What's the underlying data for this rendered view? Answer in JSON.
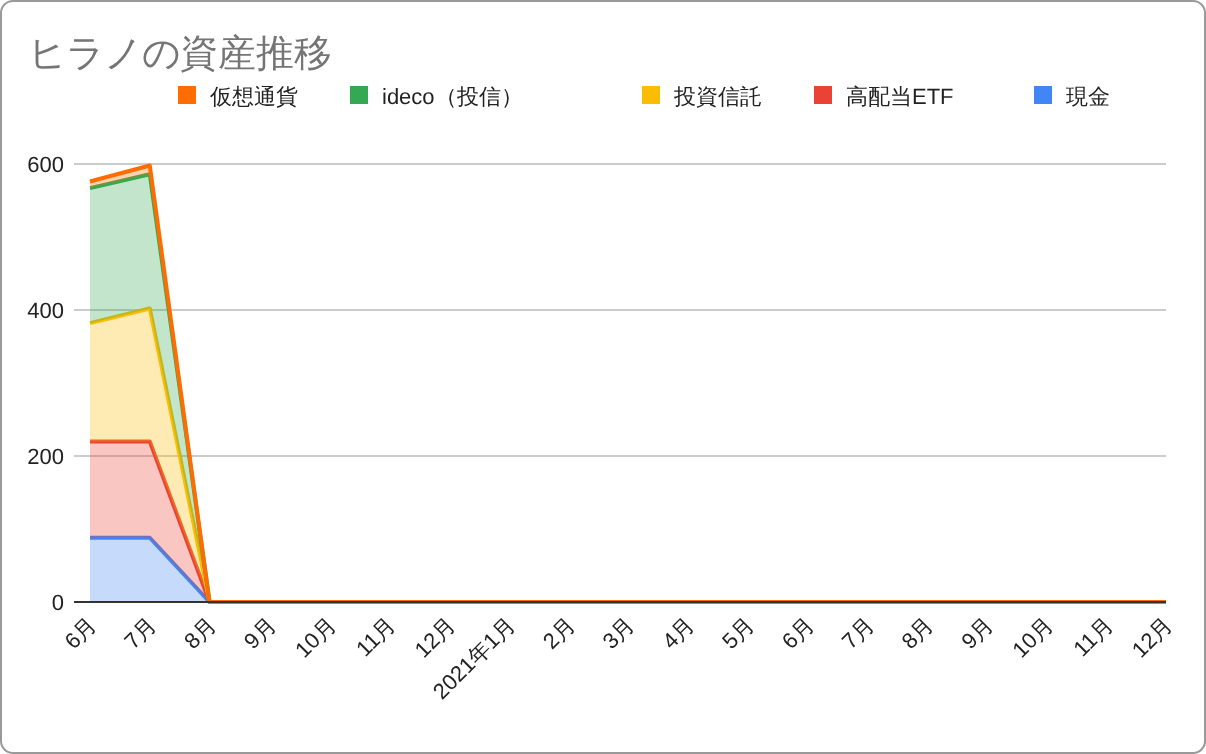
{
  "chart_data": {
    "type": "area",
    "title": "ヒラノの資産推移",
    "stacked": true,
    "legend": "top",
    "grid": "y",
    "categories": [
      "6月",
      "7月",
      "8月",
      "9月",
      "10月",
      "11月",
      "12月",
      "2021年1月",
      "2月",
      "3月",
      "4月",
      "5月",
      "6月",
      "7月",
      "8月",
      "9月",
      "10月",
      "11月",
      "12月"
    ],
    "ylim": [
      0,
      600
    ],
    "yticks": [
      0,
      200,
      400,
      600
    ],
    "series": [
      {
        "name": "現金",
        "color": "#4285f4",
        "values": [
          88,
          88,
          0,
          0,
          0,
          0,
          0,
          0,
          0,
          0,
          0,
          0,
          0,
          0,
          0,
          0,
          0,
          0,
          0
        ]
      },
      {
        "name": "高配当ETF",
        "color": "#ea4335",
        "values": [
          132,
          132,
          0,
          0,
          0,
          0,
          0,
          0,
          0,
          0,
          0,
          0,
          0,
          0,
          0,
          0,
          0,
          0,
          0
        ]
      },
      {
        "name": "投資信託",
        "color": "#fbbc04",
        "values": [
          162,
          182,
          0,
          0,
          0,
          0,
          0,
          0,
          0,
          0,
          0,
          0,
          0,
          0,
          0,
          0,
          0,
          0,
          0
        ]
      },
      {
        "name": "ideco（投信）",
        "color": "#34a853",
        "values": [
          185,
          184,
          0,
          0,
          0,
          0,
          0,
          0,
          0,
          0,
          0,
          0,
          0,
          0,
          0,
          0,
          0,
          0,
          0
        ]
      },
      {
        "name": "仮想通貨",
        "color": "#ff6d01",
        "values": [
          9,
          12,
          0,
          0,
          0,
          0,
          0,
          0,
          0,
          0,
          0,
          0,
          0,
          0,
          0,
          0,
          0,
          0,
          0
        ]
      }
    ]
  }
}
